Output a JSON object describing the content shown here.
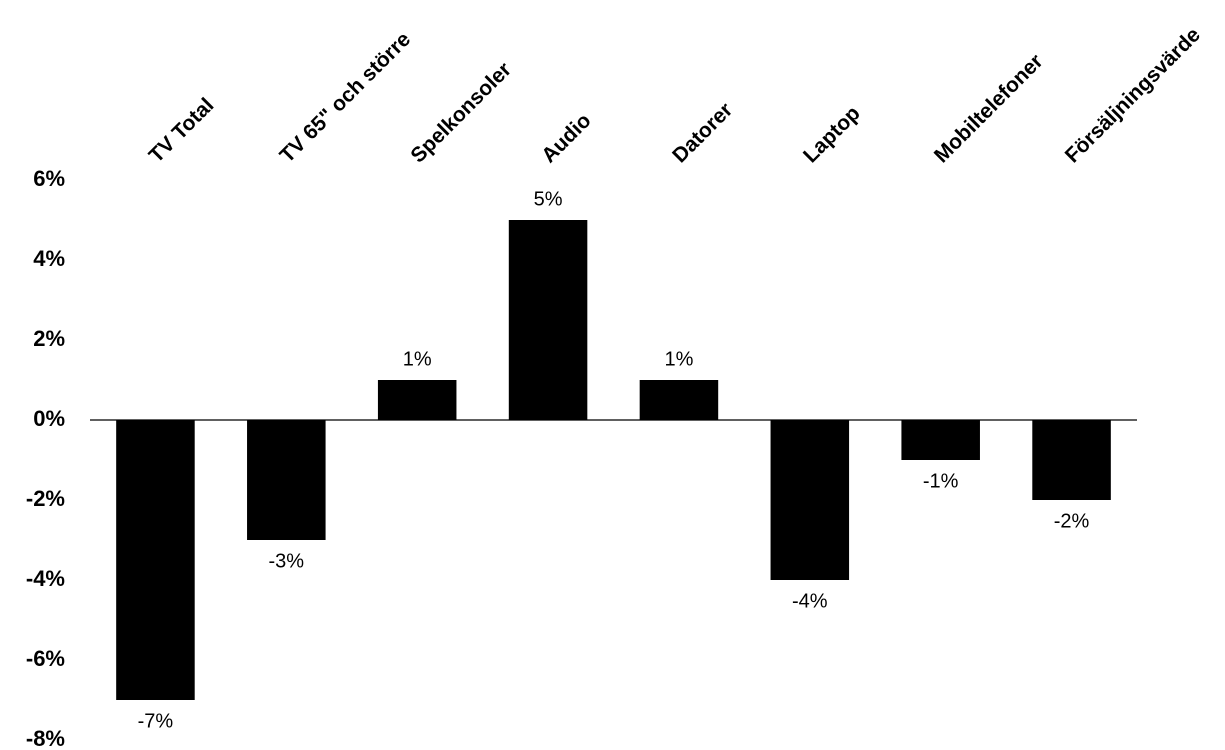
{
  "chart_data": {
    "type": "bar",
    "categories": [
      "TV Total",
      "TV 65\" och större",
      "Spelkonsoler",
      "Audio",
      "Datorer",
      "Laptop",
      "Mobiltelefoner",
      "Försäljningsvärde"
    ],
    "values": [
      -7,
      -3,
      1,
      5,
      1,
      -4,
      -1,
      -2
    ],
    "value_labels": [
      "-7%",
      "-3%",
      "1%",
      "5%",
      "1%",
      "-4%",
      "-1%",
      "-2%"
    ],
    "color": "#000000",
    "ylim": [
      -8,
      6
    ],
    "yticks": [
      {
        "value": -8,
        "label": "-8%"
      },
      {
        "value": -6,
        "label": "-6%"
      },
      {
        "value": -4,
        "label": "-4%"
      },
      {
        "value": -2,
        "label": "-2%"
      },
      {
        "value": 0,
        "label": "0%"
      },
      {
        "value": 2,
        "label": "2%"
      },
      {
        "value": 4,
        "label": "4%"
      },
      {
        "value": 6,
        "label": "6%"
      }
    ],
    "grid": false
  }
}
